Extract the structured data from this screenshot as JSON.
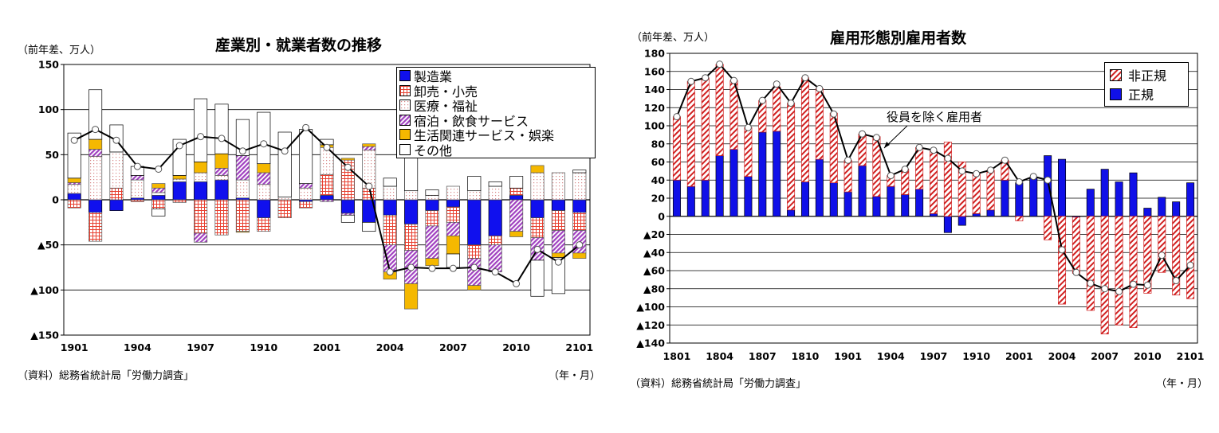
{
  "colors": {
    "manufacturing": "#1010ee",
    "wholesale_retail": "#e84030",
    "medical_welfare": "#d88888",
    "accommodation_food": "#a040c0",
    "living_entertainment": "#f5b800",
    "other": "#000000",
    "regular": "#1010e8",
    "nonregular": "#d02020",
    "line": "#000000"
  },
  "left": {
    "title": "産業別・就業者数の推移",
    "unit": "（前年差、万人）",
    "source": "（資料）総務省統計局「労働力調査」",
    "xunit": "（年・月）",
    "legend": [
      {
        "key": "manufacturing",
        "label": "製造業",
        "icon": "solid-blue-swatch"
      },
      {
        "key": "wholesale_retail",
        "label": "卸売・小売",
        "icon": "red-grid-swatch"
      },
      {
        "key": "medical_welfare",
        "label": "医療・福祉",
        "icon": "dotted-pink-swatch"
      },
      {
        "key": "accommodation_food",
        "label": "宿泊・飲食サービス",
        "icon": "purple-hatch-swatch"
      },
      {
        "key": "living_entertainment",
        "label": "生活関連サービス・娯楽",
        "icon": "solid-orange-swatch"
      },
      {
        "key": "other",
        "label": "その他",
        "icon": "white-swatch"
      }
    ]
  },
  "right": {
    "title": "雇用形態別雇用者数",
    "unit": "（前年差、万人）",
    "source": "（資料）総務省統計局「労働力調査」",
    "xunit": "（年・月）",
    "annotation": "役員を除く雇用者",
    "legend": [
      {
        "key": "nonregular",
        "label": "非正規",
        "icon": "red-hatch-swatch"
      },
      {
        "key": "regular",
        "label": "正規",
        "icon": "solid-blue-swatch"
      }
    ]
  },
  "chart_data": [
    {
      "type": "bar",
      "stacked": true,
      "title": "産業別・就業者数の推移",
      "ylabel": "（前年差、万人）",
      "xlabel": "（年・月）",
      "ylim": [
        -150,
        150
      ],
      "yticks": [
        150,
        100,
        50,
        0,
        -50,
        -100,
        -150
      ],
      "ytick_labels": [
        "150",
        "100",
        "50",
        "0",
        "▲50",
        "▲100",
        "▲150"
      ],
      "grid": true,
      "legend_position": "top-right",
      "x": [
        "1901",
        "1902",
        "1903",
        "1904",
        "1905",
        "1906",
        "1907",
        "1908",
        "1909",
        "1910",
        "1911",
        "1912",
        "2001",
        "2002",
        "2003",
        "2004",
        "2005",
        "2006",
        "2007",
        "2008",
        "2009",
        "2010",
        "2011",
        "2012",
        "2101"
      ],
      "xtick_labels": [
        "1901",
        "1904",
        "1907",
        "1910",
        "2001",
        "2004",
        "2007",
        "2010",
        "2101"
      ],
      "series": [
        {
          "name": "製造業",
          "key": "manufacturing",
          "values": [
            7,
            -14,
            -12,
            2,
            5,
            20,
            20,
            22,
            2,
            -20,
            0,
            -2,
            5,
            -15,
            -25,
            -17,
            -27,
            -12,
            -8,
            -50,
            -40,
            5,
            -20,
            -12,
            -14
          ]
        },
        {
          "name": "卸売・小売",
          "key": "wholesale_retail",
          "values": [
            -9,
            -32,
            13,
            -2,
            -10,
            -3,
            -37,
            -39,
            -35,
            -15,
            -20,
            -7,
            23,
            44,
            13,
            -33,
            -29,
            -17,
            -17,
            -15,
            -10,
            8,
            -22,
            -22,
            -20
          ]
        },
        {
          "name": "医療・福祉",
          "key": "medical_welfare",
          "values": [
            10,
            48,
            40,
            20,
            3,
            3,
            10,
            5,
            20,
            17,
            3,
            13,
            30,
            0,
            42,
            15,
            10,
            5,
            15,
            10,
            15,
            0,
            30,
            30,
            30
          ]
        },
        {
          "name": "宿泊・飲食サービス",
          "key": "accommodation_food",
          "values": [
            2,
            8,
            0,
            5,
            5,
            0,
            -10,
            8,
            27,
            13,
            0,
            5,
            -2,
            -2,
            4,
            -30,
            -37,
            -36,
            -15,
            -30,
            -30,
            -35,
            -25,
            -25,
            -25
          ]
        },
        {
          "name": "生活関連サービス・娯楽",
          "key": "living_entertainment",
          "values": [
            5,
            11,
            0,
            0,
            5,
            4,
            12,
            16,
            -1,
            10,
            0,
            0,
            3,
            2,
            3,
            -8,
            -28,
            -8,
            -20,
            -5,
            0,
            -6,
            8,
            -5,
            -6
          ]
        },
        {
          "name": "その他",
          "key": "other",
          "values": [
            50,
            55,
            30,
            10,
            -8,
            40,
            70,
            55,
            40,
            57,
            72,
            60,
            6,
            -8,
            -10,
            9,
            37,
            6,
            -15,
            16,
            5,
            13,
            -40,
            -40,
            3
          ]
        }
      ],
      "line": {
        "name": "total",
        "values": [
          66,
          78,
          66,
          37,
          34,
          60,
          70,
          68,
          54,
          62,
          54,
          80,
          58,
          36,
          15,
          -80,
          -75,
          -76,
          -76,
          -75,
          -80,
          -93,
          -55,
          -69,
          -50
        ]
      }
    },
    {
      "type": "bar",
      "stacked": true,
      "title": "雇用形態別雇用者数",
      "ylabel": "（前年差、万人）",
      "xlabel": "（年・月）",
      "ylim": [
        -140,
        180
      ],
      "yticks": [
        180,
        160,
        140,
        120,
        100,
        80,
        60,
        40,
        20,
        0,
        -20,
        -40,
        -60,
        -80,
        -100,
        -120,
        -140
      ],
      "ytick_labels": [
        "180",
        "160",
        "140",
        "120",
        "100",
        "80",
        "60",
        "40",
        "20",
        "0",
        "▲20",
        "▲40",
        "▲60",
        "▲80",
        "▲100",
        "▲120",
        "▲140"
      ],
      "grid": true,
      "legend_position": "top-right",
      "x": [
        "1801",
        "1802",
        "1803",
        "1804",
        "1805",
        "1806",
        "1807",
        "1808",
        "1809",
        "1810",
        "1811",
        "1812",
        "1901",
        "1902",
        "1903",
        "1904",
        "1905",
        "1906",
        "1907",
        "1908",
        "1909",
        "1910",
        "1911",
        "1912",
        "2001",
        "2002",
        "2003",
        "2004",
        "2005",
        "2006",
        "2007",
        "2008",
        "2009",
        "2010",
        "2011",
        "2012",
        "2101"
      ],
      "xtick_labels": [
        "1801",
        "1804",
        "1807",
        "1810",
        "1901",
        "1904",
        "1907",
        "1910",
        "2001",
        "2004",
        "2007",
        "2010",
        "2101"
      ],
      "series": [
        {
          "name": "正規",
          "key": "regular",
          "values": [
            40,
            33,
            40,
            67,
            74,
            44,
            93,
            94,
            7,
            38,
            63,
            37,
            27,
            56,
            22,
            33,
            24,
            30,
            3,
            -18,
            -10,
            3,
            7,
            40,
            37,
            42,
            67,
            63,
            -1,
            30,
            52,
            38,
            48,
            9,
            21,
            16,
            37
          ]
        },
        {
          "name": "非正規",
          "key": "nonregular",
          "values": [
            70,
            116,
            113,
            101,
            76,
            54,
            35,
            49,
            118,
            115,
            78,
            77,
            35,
            35,
            66,
            12,
            28,
            46,
            69,
            82,
            60,
            44,
            44,
            22,
            -5,
            0,
            -26,
            -97,
            -62,
            -104,
            -130,
            -120,
            -123,
            -85,
            -62,
            -87,
            -91
          ]
        }
      ],
      "line": {
        "name": "役員を除く雇用者",
        "values": [
          110,
          149,
          153,
          168,
          150,
          98,
          128,
          146,
          125,
          153,
          141,
          113,
          62,
          91,
          87,
          45,
          52,
          76,
          73,
          64,
          50,
          47,
          51,
          62,
          38,
          44,
          40,
          -37,
          -62,
          -74,
          -80,
          -83,
          -75,
          -76,
          -43,
          -71,
          -54
        ]
      }
    }
  ]
}
